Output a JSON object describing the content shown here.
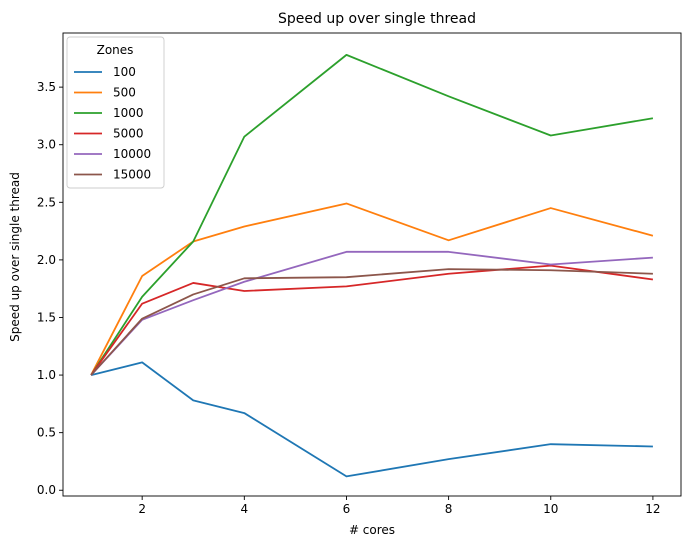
{
  "chart_data": {
    "type": "line",
    "title": "Speed up over single thread",
    "xlabel": "# cores",
    "ylabel": "Speed up over single thread",
    "x": [
      1,
      2,
      3,
      4,
      6,
      8,
      10,
      12
    ],
    "xlim": [
      0.45,
      12.55
    ],
    "ylim": [
      -0.05,
      3.97
    ],
    "xticks": [
      2,
      4,
      6,
      8,
      10,
      12
    ],
    "yticks": [
      0.0,
      0.5,
      1.0,
      1.5,
      2.0,
      2.5,
      3.0,
      3.5
    ],
    "grid": false,
    "legend": {
      "title": "Zones",
      "position": "top-left"
    },
    "series": [
      {
        "name": "100",
        "color": "#1f77b4",
        "values": [
          1.0,
          1.11,
          0.78,
          0.67,
          0.12,
          0.27,
          0.4,
          0.38
        ]
      },
      {
        "name": "500",
        "color": "#ff7f0e",
        "values": [
          1.0,
          1.86,
          2.16,
          2.29,
          2.49,
          2.17,
          2.45,
          2.21
        ]
      },
      {
        "name": "1000",
        "color": "#2ca02c",
        "values": [
          1.0,
          1.68,
          2.16,
          3.07,
          3.78,
          3.42,
          3.08,
          3.23
        ]
      },
      {
        "name": "5000",
        "color": "#d62728",
        "values": [
          1.0,
          1.62,
          1.8,
          1.73,
          1.77,
          1.88,
          1.95,
          1.83
        ]
      },
      {
        "name": "10000",
        "color": "#9467bd",
        "values": [
          1.0,
          1.48,
          1.65,
          1.81,
          2.07,
          2.07,
          1.96,
          2.02
        ]
      },
      {
        "name": "15000",
        "color": "#8c564b",
        "values": [
          1.0,
          1.49,
          1.7,
          1.84,
          1.85,
          1.92,
          1.91,
          1.88
        ]
      }
    ]
  }
}
